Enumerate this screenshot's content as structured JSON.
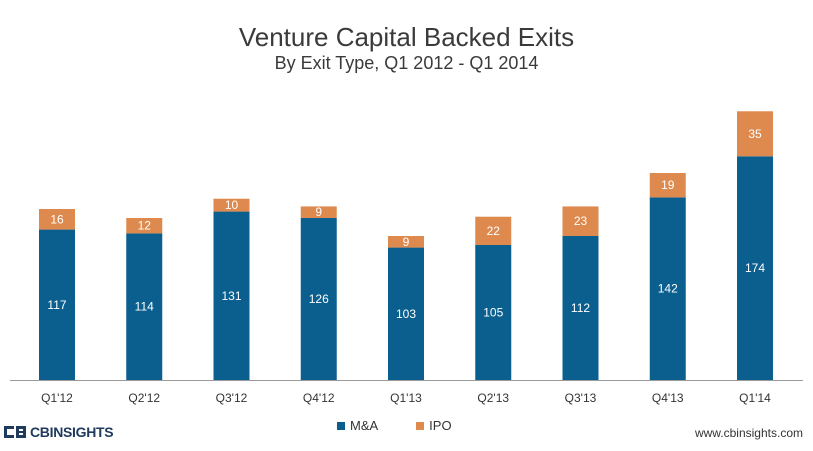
{
  "chart_data": {
    "type": "bar",
    "stacked": true,
    "title": "Venture Capital Backed Exits",
    "subtitle": "By Exit Type, Q1 2012 - Q1 2014",
    "categories": [
      "Q1'12",
      "Q2'12",
      "Q3'12",
      "Q4'12",
      "Q1'13",
      "Q2'13",
      "Q3'13",
      "Q4'13",
      "Q1'14"
    ],
    "series": [
      {
        "name": "M&A",
        "color": "#0b5f8f",
        "values": [
          117,
          114,
          131,
          126,
          103,
          105,
          112,
          142,
          174
        ]
      },
      {
        "name": "IPO",
        "color": "#de8a4f",
        "values": [
          16,
          12,
          10,
          9,
          9,
          22,
          23,
          19,
          35
        ]
      }
    ],
    "ylim": [
      0,
      210
    ],
    "grid": false,
    "legend_position": "bottom"
  },
  "footer": {
    "brand": "CBINSIGHTS",
    "website": "www.cbinsights.com"
  }
}
